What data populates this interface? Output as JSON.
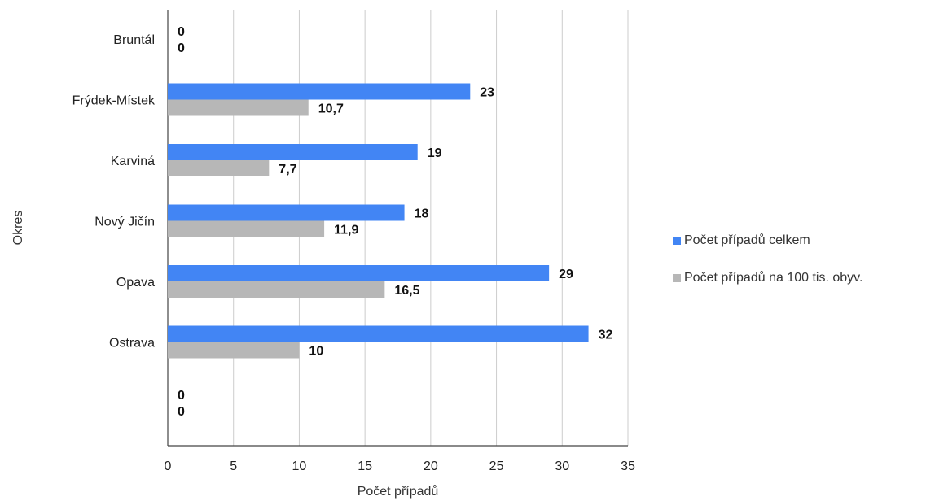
{
  "chart_data": {
    "type": "bar",
    "orientation": "horizontal",
    "xlabel": "Počet případů",
    "ylabel": "Okres",
    "xlim": [
      0,
      35
    ],
    "x_ticks": [
      0,
      5,
      10,
      15,
      20,
      25,
      30,
      35
    ],
    "grid": true,
    "legend_position": "right",
    "categories": [
      "Bruntál",
      "Frýdek-Místek",
      "Karviná",
      "Nový Jičín",
      "Opava",
      "Ostrava",
      ""
    ],
    "series": [
      {
        "name": "Počet případů celkem",
        "color": "#4285f4",
        "values": [
          0,
          23,
          19,
          18,
          29,
          32,
          0
        ],
        "labels": [
          "0",
          "23",
          "19",
          "18",
          "29",
          "32",
          "0"
        ]
      },
      {
        "name": "Počet případů na 100 tis. obyv.",
        "color": "#b7b7b7",
        "values": [
          0,
          10.7,
          7.7,
          11.9,
          16.5,
          10,
          0
        ],
        "labels": [
          "0",
          "10,7",
          "7,7",
          "11,9",
          "16,5",
          "10",
          "0"
        ]
      }
    ]
  }
}
